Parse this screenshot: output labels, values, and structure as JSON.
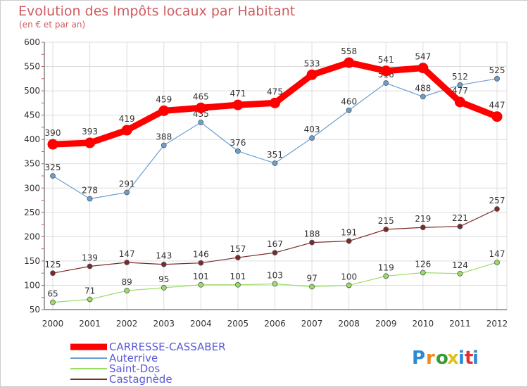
{
  "chart_data": {
    "type": "line",
    "title": "Evolution des Impôts locaux par Habitant",
    "subtitle": "(en € et par an)",
    "x": [
      "2000",
      "2001",
      "2002",
      "2003",
      "2004",
      "2005",
      "2006",
      "2007",
      "2008",
      "2009",
      "2010",
      "2011",
      "2012"
    ],
    "y_ticks": [
      "50",
      "100",
      "150",
      "200",
      "250",
      "300",
      "350",
      "400",
      "450",
      "500",
      "550",
      "600"
    ],
    "ylim": [
      50,
      600
    ],
    "grid": true,
    "legend_position": "bottom-left",
    "series": [
      {
        "name": "CARRESSE-CASSABER",
        "color": "#ff0000",
        "values": [
          390,
          393,
          419,
          459,
          465,
          471,
          475,
          533,
          558,
          541,
          547,
          477,
          447
        ]
      },
      {
        "name": "Auterrive",
        "color": "#6a9fd2",
        "values": [
          325,
          278,
          291,
          388,
          435,
          376,
          351,
          403,
          460,
          516,
          488,
          512,
          525
        ]
      },
      {
        "name": "Saint-Dos",
        "color": "#99dd66",
        "values": [
          65,
          71,
          89,
          95,
          101,
          101,
          103,
          97,
          100,
          119,
          126,
          124,
          147
        ]
      },
      {
        "name": "Castagnède",
        "color": "#7a2a2a",
        "values": [
          125,
          139,
          147,
          143,
          146,
          157,
          167,
          188,
          191,
          215,
          219,
          221,
          257
        ]
      }
    ]
  },
  "logo": {
    "letters": [
      "P",
      "r",
      "o",
      "x",
      "i",
      "t",
      "i"
    ],
    "colors": [
      "#2a8ad6",
      "#f08a1a",
      "#3a9a3a",
      "#e0c020",
      "#2a8ad6",
      "#e03030",
      "#2a8ad6"
    ]
  }
}
